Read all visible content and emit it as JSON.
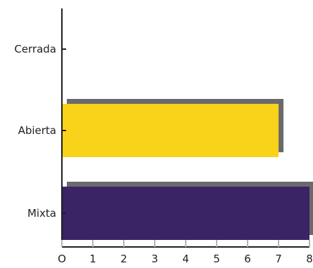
{
  "chart_data": {
    "type": "bar",
    "orientation": "horizontal",
    "categories": [
      "Cerrada",
      "Abierta",
      "Mixta"
    ],
    "values": [
      0,
      7,
      8
    ],
    "bar_colors": [
      "#f9d21a",
      "#f9d21a",
      "#3b2466"
    ],
    "shadow_color": "#6a6a6a",
    "axis_color": "#1f1f1f",
    "tick_color": "#b5b5b5",
    "xlim": [
      0,
      8
    ],
    "x_ticks": [
      0,
      1,
      2,
      3,
      4,
      5,
      6,
      7,
      8
    ],
    "x_tick_labels": [
      "O",
      "1",
      "2",
      "3",
      "4",
      "5",
      "6",
      "7",
      "8"
    ],
    "grid": false,
    "legend": "none",
    "title": "",
    "xlabel": "",
    "ylabel": ""
  }
}
